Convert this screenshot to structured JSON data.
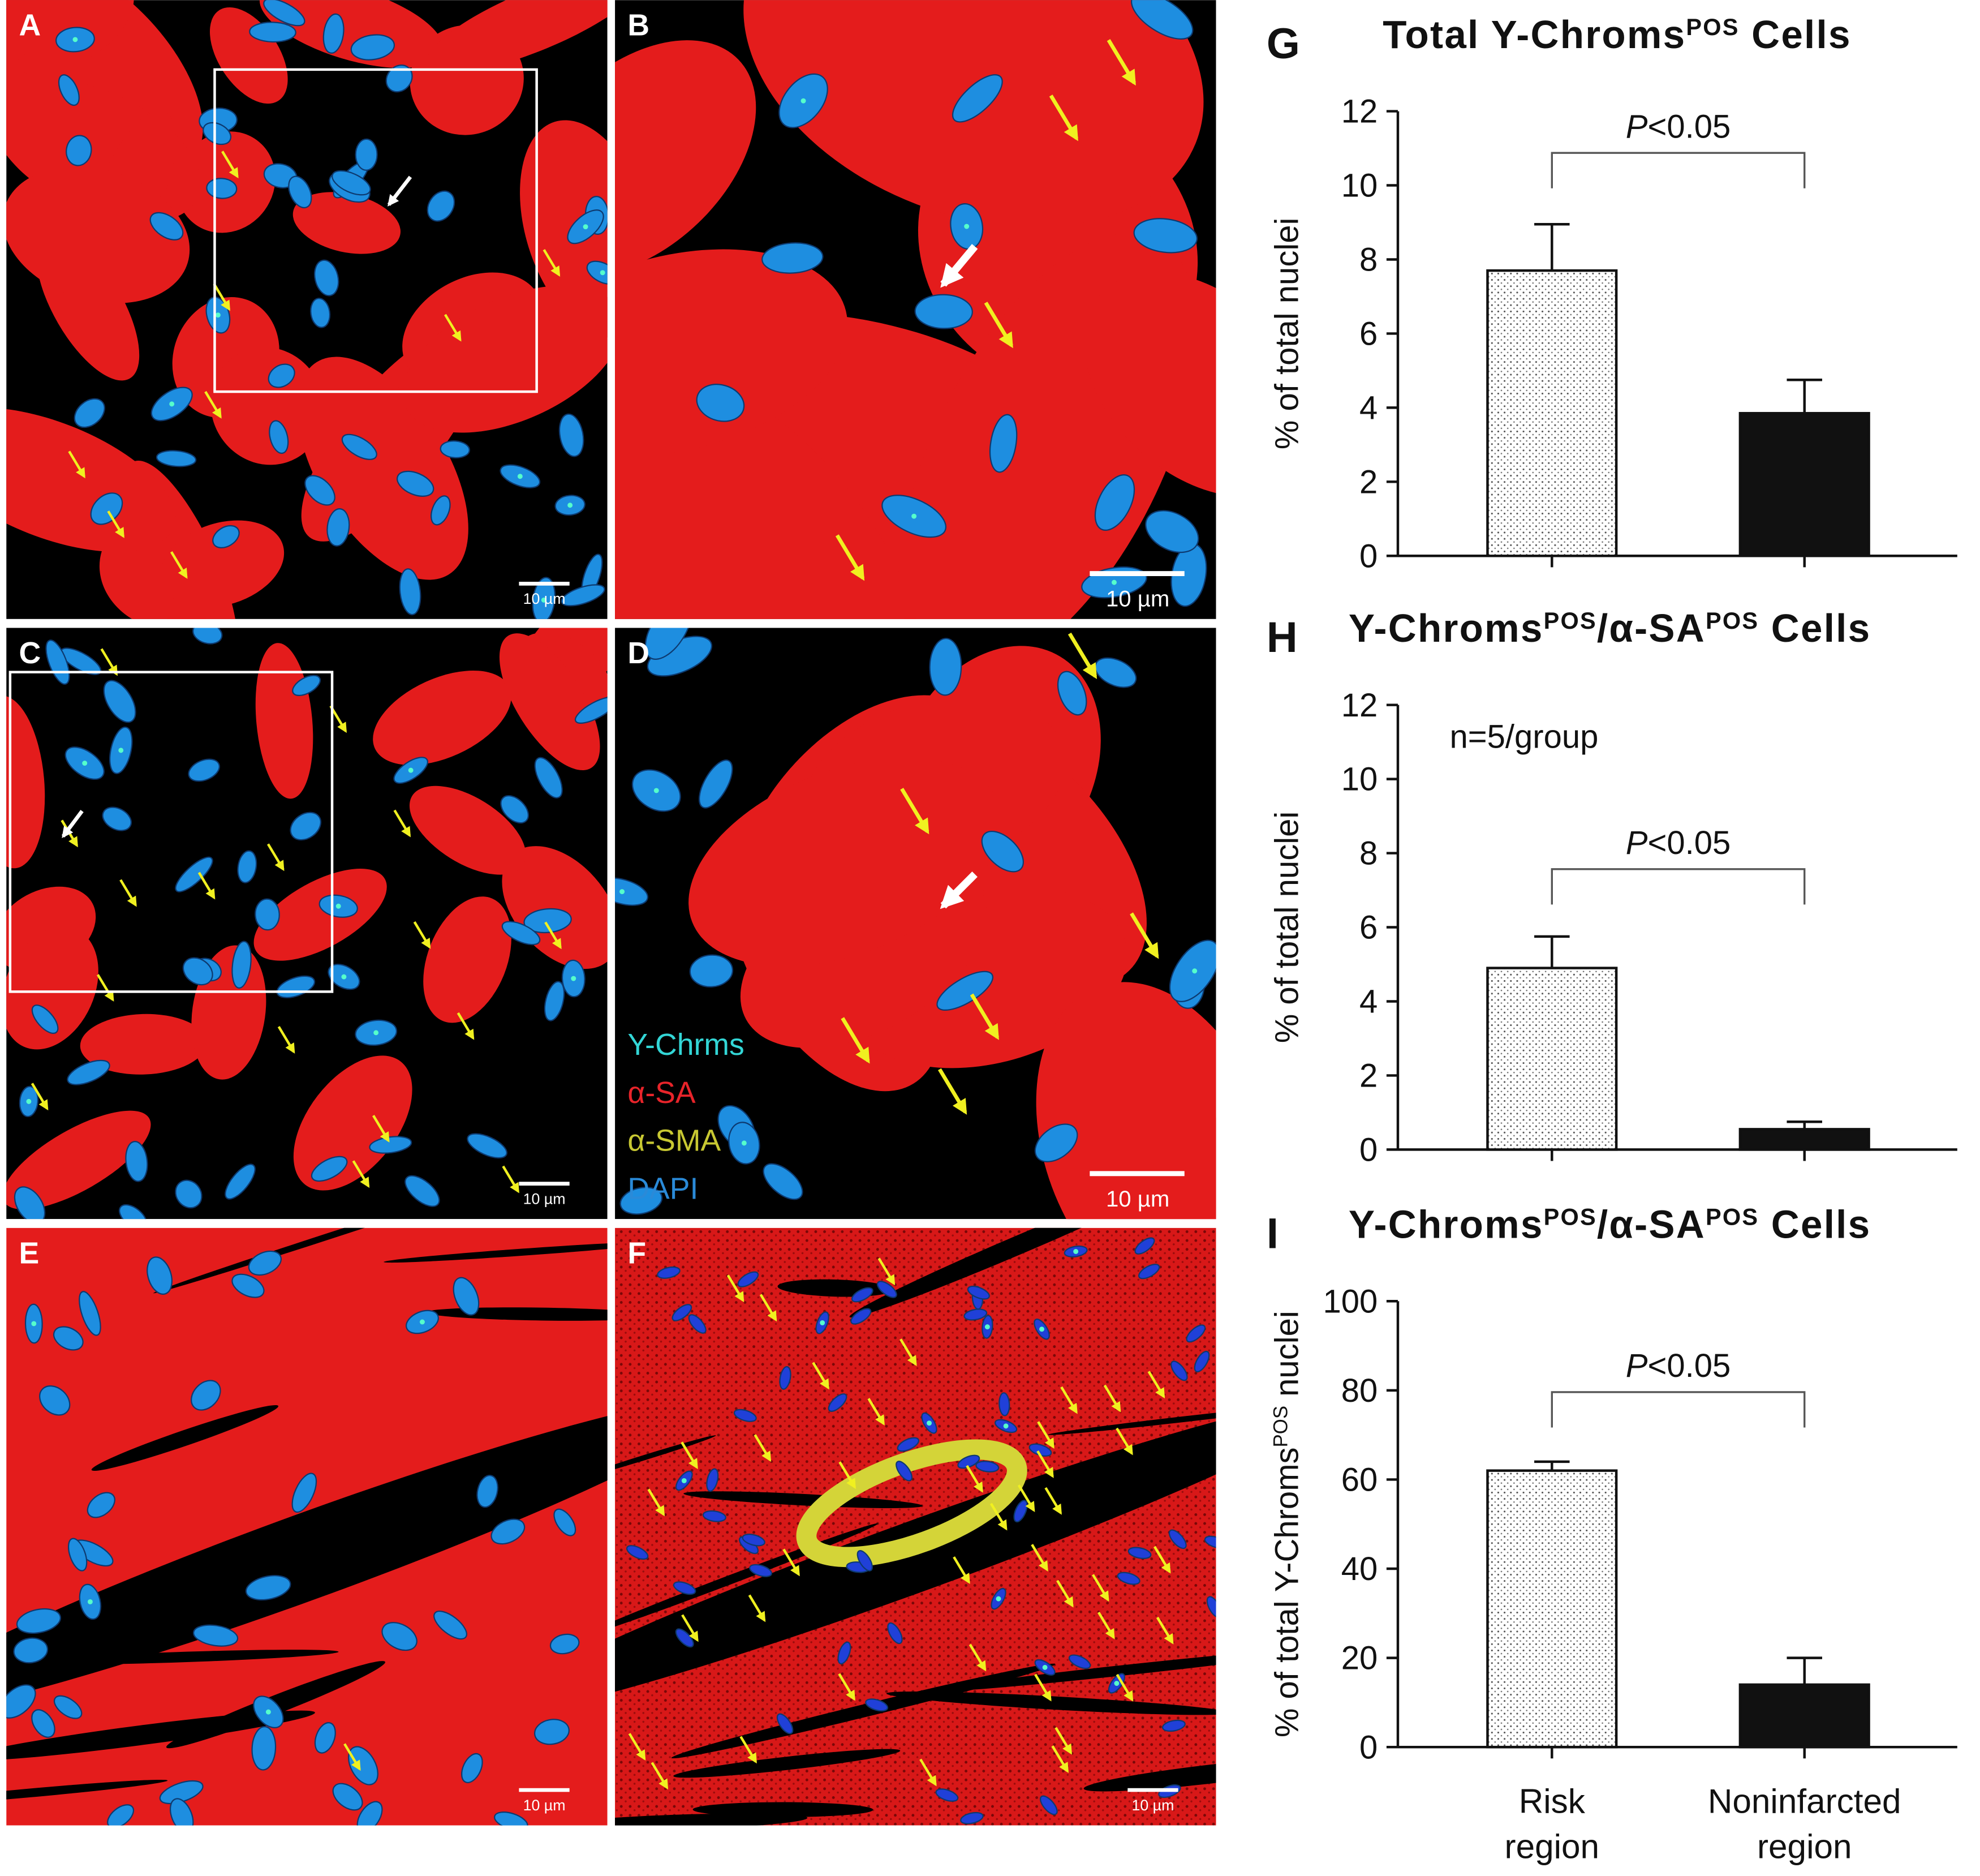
{
  "panels": [
    {
      "label": "A",
      "scale": "10 µm"
    },
    {
      "label": "B",
      "scale": "10 µm"
    },
    {
      "label": "C",
      "scale": "10 µm"
    },
    {
      "label": "D",
      "scale": "10 µm"
    },
    {
      "label": "E",
      "scale": "10 µm"
    },
    {
      "label": "F",
      "scale": "10 µm"
    }
  ],
  "legend": [
    {
      "text": "Y-Chrms",
      "color": "#33d6d6"
    },
    {
      "text": "α-SA",
      "color": "#e8242a"
    },
    {
      "text": "α-SMA",
      "color": "#c8c832"
    },
    {
      "text": "DAPI",
      "color": "#2a8ad8"
    }
  ],
  "chart_data": [
    {
      "type": "bar",
      "panel": "G",
      "title": [
        {
          "text": "Total Y-Chroms"
        },
        {
          "text": "POS",
          "sup": true
        },
        {
          "text": " Cells"
        }
      ],
      "ylabel": [
        {
          "text": "% of total nuclei"
        }
      ],
      "categories": [
        null,
        null
      ],
      "values": [
        7.7,
        3.85
      ],
      "errors": [
        1.25,
        0.9
      ],
      "bar_styles": [
        "dotted",
        "solid"
      ],
      "ylim": [
        0,
        12
      ],
      "yticks": [
        0,
        2,
        4,
        6,
        8,
        10,
        12
      ],
      "annotation": [
        {
          "text": "P",
          "italic": true
        },
        {
          "text": "<0.05"
        }
      ]
    },
    {
      "type": "bar",
      "panel": "H",
      "title": [
        {
          "text": "Y-Chroms"
        },
        {
          "text": "POS",
          "sup": true
        },
        {
          "text": "/α-SA"
        },
        {
          "text": "POS",
          "sup": true
        },
        {
          "text": " Cells"
        }
      ],
      "ylabel": [
        {
          "text": "% of total nuclei"
        }
      ],
      "categories": [
        null,
        null
      ],
      "values": [
        4.9,
        0.55
      ],
      "errors": [
        0.85,
        0.2
      ],
      "bar_styles": [
        "dotted",
        "solid"
      ],
      "ylim": [
        0,
        12
      ],
      "yticks": [
        0,
        2,
        4,
        6,
        8,
        10,
        12
      ],
      "annotation": [
        {
          "text": "P",
          "italic": true
        },
        {
          "text": "<0.05"
        }
      ],
      "note": "n=5/group"
    },
    {
      "type": "bar",
      "panel": "I",
      "title": [
        {
          "text": "Y-Chroms"
        },
        {
          "text": "POS",
          "sup": true
        },
        {
          "text": "/α-SA"
        },
        {
          "text": "POS",
          "sup": true
        },
        {
          "text": " Cells"
        }
      ],
      "ylabel": [
        {
          "text": "% of total Y-Chroms"
        },
        {
          "text": "POS",
          "sup": true
        },
        {
          "text": " nuclei"
        }
      ],
      "categories": [
        "Risk region",
        "Noninfarcted region"
      ],
      "values": [
        62,
        14
      ],
      "errors": [
        2,
        6
      ],
      "bar_styles": [
        "dotted",
        "solid"
      ],
      "ylim": [
        0,
        100
      ],
      "yticks": [
        0,
        20,
        40,
        60,
        80,
        100
      ],
      "annotation": [
        {
          "text": "P",
          "italic": true
        },
        {
          "text": "<0.05"
        }
      ]
    }
  ]
}
